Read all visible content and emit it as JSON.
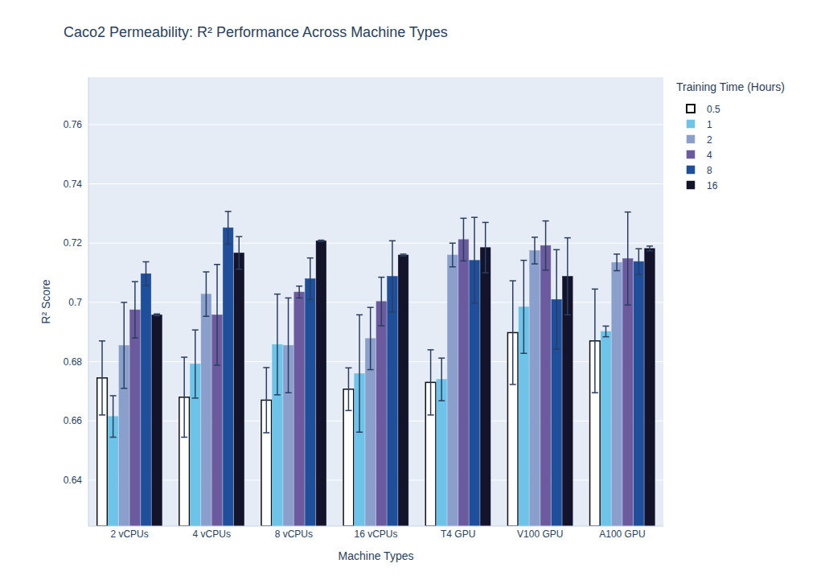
{
  "chart_data": {
    "type": "bar",
    "title": "Caco2 Permeability: R² Performance Across Machine Types",
    "x_label": "Machine Types",
    "y_label": "R² Score",
    "legend_title": "Training Time (Hours)",
    "categories": [
      "2 vCPUs",
      "4 vCPUs",
      "8 vCPUs",
      "16 vCPUs",
      "T4 GPU",
      "V100 GPU",
      "A100 GPU"
    ],
    "series": [
      {
        "name": "0.5",
        "color": "#ffffff",
        "values": [
          0.6745,
          0.668,
          0.667,
          0.6707,
          0.673,
          0.6898,
          0.687
        ],
        "errors": [
          0.0125,
          0.0135,
          0.011,
          0.0072,
          0.011,
          0.0175,
          0.0175
        ]
      },
      {
        "name": "1",
        "color": "#6ec4e8",
        "values": [
          0.6615,
          0.6792,
          0.6858,
          0.676,
          0.674,
          0.6985,
          0.6902
        ],
        "errors": [
          0.007,
          0.0115,
          0.017,
          0.0198,
          0.0072,
          0.0157,
          0.0018
        ]
      },
      {
        "name": "2",
        "color": "#8a9fcc",
        "values": [
          0.6855,
          0.7028,
          0.6855,
          0.6878,
          0.716,
          0.7175,
          0.7135
        ],
        "errors": [
          0.0145,
          0.0075,
          0.016,
          0.0105,
          0.004,
          0.0045,
          0.0028
        ]
      },
      {
        "name": "4",
        "color": "#6b5b9e",
        "values": [
          0.6975,
          0.6958,
          0.7035,
          0.7003,
          0.7212,
          0.7192,
          0.7148
        ],
        "errors": [
          0.0095,
          0.017,
          0.002,
          0.0082,
          0.0072,
          0.0083,
          0.0157
        ]
      },
      {
        "name": "8",
        "color": "#1f4f9a",
        "values": [
          0.7097,
          0.7252,
          0.708,
          0.7088,
          0.7142,
          0.701,
          0.7138
        ],
        "errors": [
          0.004,
          0.0055,
          0.007,
          0.012,
          0.0145,
          0.0168,
          0.0043
        ]
      },
      {
        "name": "16",
        "color": "#13132b",
        "values": [
          0.6958,
          0.7167,
          0.7208,
          0.716,
          0.7185,
          0.7088,
          0.7182
        ],
        "errors": [
          0.0003,
          0.0055,
          0.0002,
          0.0003,
          0.0085,
          0.013,
          0.0008
        ]
      }
    ],
    "ylim": [
      0.6245,
      0.776
    ],
    "yticks": [
      0.64,
      0.66,
      0.68,
      0.7,
      0.72,
      0.74,
      0.76
    ],
    "grid": true,
    "legend": "right"
  }
}
